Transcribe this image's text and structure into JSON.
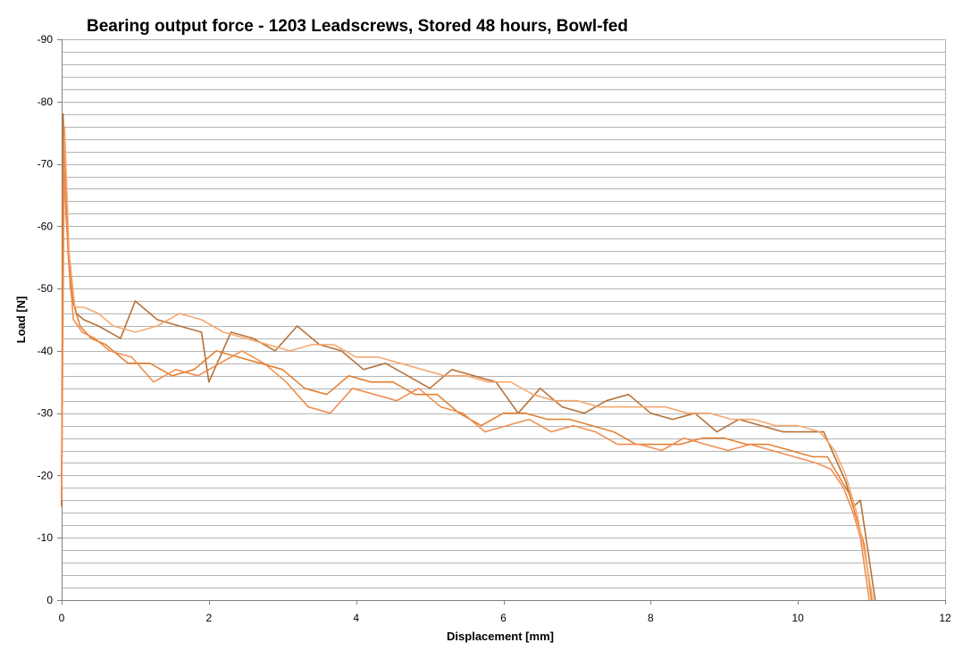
{
  "chart_data": {
    "type": "line",
    "title": "Bearing output force - 1203 Leadscrews, Stored 48 hours, Bowl-fed",
    "xlabel": "Displacement  [mm]",
    "ylabel": "Load [N]",
    "xlim": [
      0,
      12
    ],
    "ylim": [
      0,
      -90
    ],
    "x_ticks": [
      0,
      2,
      4,
      6,
      8,
      10,
      12
    ],
    "y_ticks": [
      0,
      -10,
      -20,
      -30,
      -40,
      -50,
      -60,
      -70,
      -80,
      -90
    ],
    "y_minor_step": -2,
    "grid": true,
    "legend": "none",
    "series": [
      {
        "color": "#b36a2e",
        "x": [
          0,
          0.02,
          0.06,
          0.12,
          0.2,
          0.3,
          0.5,
          0.8,
          1.0,
          1.3,
          1.6,
          1.9,
          2.0,
          2.3,
          2.6,
          2.9,
          3.2,
          3.5,
          3.8,
          4.1,
          4.4,
          4.7,
          5.0,
          5.3,
          5.6,
          5.9,
          6.2,
          6.5,
          6.8,
          7.1,
          7.4,
          7.7,
          8.0,
          8.3,
          8.6,
          8.9,
          9.2,
          9.5,
          9.8,
          10.1,
          10.35,
          10.5,
          10.65,
          10.75,
          10.85,
          10.95,
          11.05
        ],
        "y": [
          -15,
          -78,
          -62,
          -50,
          -46,
          -45,
          -44,
          -42,
          -48,
          -45,
          -44,
          -43,
          -35,
          -43,
          -42,
          -40,
          -44,
          -41,
          -40,
          -37,
          -38,
          -36,
          -34,
          -37,
          -36,
          -35,
          -30,
          -34,
          -31,
          -30,
          -32,
          -33,
          -30,
          -29,
          -30,
          -27,
          -29,
          -28,
          -27,
          -27,
          -27,
          -23,
          -19,
          -15,
          -16,
          -8,
          0
        ]
      },
      {
        "color": "#e07b2a",
        "x": [
          0,
          0.03,
          0.08,
          0.15,
          0.25,
          0.4,
          0.6,
          0.9,
          1.2,
          1.5,
          1.8,
          2.1,
          2.4,
          2.7,
          3.0,
          3.3,
          3.6,
          3.9,
          4.2,
          4.5,
          4.8,
          5.1,
          5.4,
          5.7,
          6.0,
          6.3,
          6.6,
          6.9,
          7.2,
          7.5,
          7.8,
          8.1,
          8.4,
          8.7,
          9.0,
          9.3,
          9.6,
          9.9,
          10.2,
          10.4,
          10.6,
          10.7,
          10.8,
          10.9,
          11.0
        ],
        "y": [
          -20,
          -74,
          -58,
          -48,
          -44,
          -42,
          -41,
          -38,
          -38,
          -36,
          -37,
          -40,
          -39,
          -38,
          -37,
          -34,
          -33,
          -36,
          -35,
          -35,
          -33,
          -33,
          -30,
          -28,
          -30,
          -30,
          -29,
          -29,
          -28,
          -27,
          -25,
          -25,
          -25,
          -26,
          -26,
          -25,
          -25,
          -24,
          -23,
          -23,
          -19,
          -17,
          -13,
          -9,
          0
        ]
      },
      {
        "color": "#f4a56a",
        "x": [
          0,
          0.04,
          0.1,
          0.18,
          0.3,
          0.5,
          0.7,
          1.0,
          1.3,
          1.6,
          1.9,
          2.2,
          2.5,
          2.8,
          3.1,
          3.4,
          3.7,
          4.0,
          4.3,
          4.6,
          4.9,
          5.2,
          5.5,
          5.8,
          6.1,
          6.4,
          6.7,
          7.0,
          7.3,
          7.6,
          7.9,
          8.2,
          8.5,
          8.8,
          9.1,
          9.4,
          9.7,
          10.0,
          10.3,
          10.5,
          10.65,
          10.8,
          10.9,
          11.02
        ],
        "y": [
          -18,
          -76,
          -56,
          -47,
          -47,
          -46,
          -44,
          -43,
          -44,
          -46,
          -45,
          -43,
          -42,
          -41,
          -40,
          -41,
          -41,
          -39,
          -39,
          -38,
          -37,
          -36,
          -36,
          -35,
          -35,
          -33,
          -32,
          -32,
          -31,
          -31,
          -31,
          -31,
          -30,
          -30,
          -29,
          -29,
          -28,
          -28,
          -27,
          -24,
          -20,
          -14,
          -8,
          0
        ]
      },
      {
        "color": "#f0894a",
        "x": [
          0,
          0.03,
          0.09,
          0.16,
          0.28,
          0.45,
          0.65,
          0.95,
          1.25,
          1.55,
          1.85,
          2.15,
          2.45,
          2.75,
          3.05,
          3.35,
          3.65,
          3.95,
          4.25,
          4.55,
          4.85,
          5.15,
          5.45,
          5.75,
          6.05,
          6.35,
          6.65,
          6.95,
          7.25,
          7.55,
          7.85,
          8.15,
          8.45,
          8.75,
          9.05,
          9.35,
          9.65,
          9.95,
          10.25,
          10.45,
          10.62,
          10.75,
          10.85,
          10.97
        ],
        "y": [
          -16,
          -72,
          -55,
          -45,
          -43,
          -42,
          -40,
          -39,
          -35,
          -37,
          -36,
          -38,
          -40,
          -38,
          -35,
          -31,
          -30,
          -34,
          -33,
          -32,
          -34,
          -31,
          -30,
          -27,
          -28,
          -29,
          -27,
          -28,
          -27,
          -25,
          -25,
          -24,
          -26,
          -25,
          -24,
          -25,
          -24,
          -23,
          -22,
          -21,
          -18,
          -14,
          -10,
          0
        ]
      }
    ]
  }
}
